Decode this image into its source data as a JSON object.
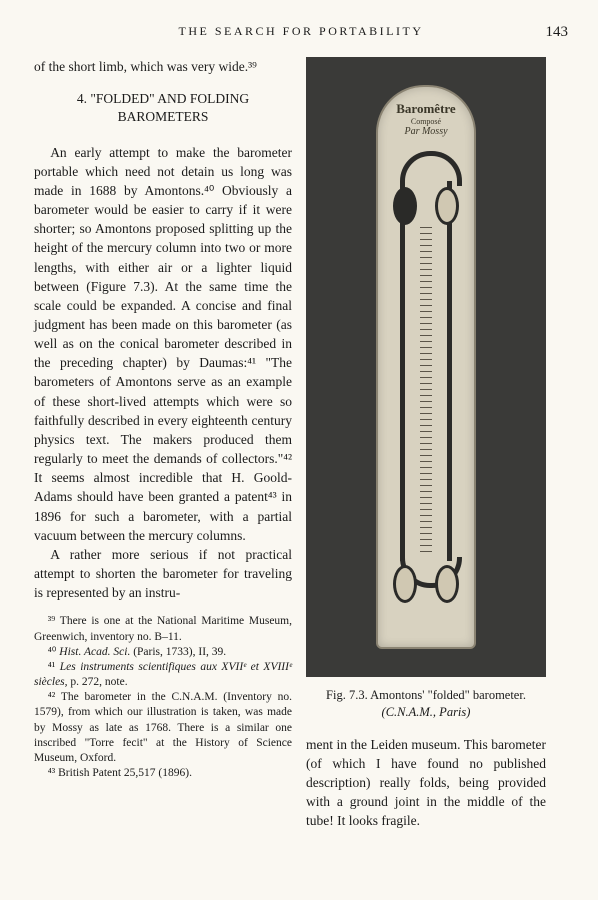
{
  "header": {
    "running_head": "THE SEARCH FOR PORTABILITY",
    "page_number": "143"
  },
  "left": {
    "fragment": "of the short limb, which was very wide.³⁹",
    "section_number": "4.",
    "section_title": "\"FOLDED\" AND FOLDING BAROMETERS",
    "para1": "An early attempt to make the barometer portable which need not detain us long was made in 1688 by Amontons.⁴⁰ Obviously a barometer would be easier to carry if it were shorter; so Amontons proposed splitting up the height of the mercury column into two or more lengths, with either air or a lighter liquid between (Figure 7.3). At the same time the scale could be expanded. A concise and final judgment has been made on this barometer (as well as on the conical barometer described in the preceding chapter) by Daumas:⁴¹ \"The barometers of Amontons serve as an example of these short-lived attempts which were so faithfully described in every eighteenth century physics text. The makers produced them regularly to meet the demands of collectors.\"⁴² It seems almost incredible that H. Goold-Adams should have been granted a patent⁴³ in 1896 for such a barometer, with a partial vacuum between the mercury columns.",
    "para2": "A rather more serious if not practical attempt to shorten the barometer for traveling is represented by an instru-"
  },
  "footnotes": {
    "n39": "³⁹ There is one at the National Maritime Museum, Greenwich, inventory no. B–11.",
    "n40_a": "⁴⁰ ",
    "n40_b": "Hist. Acad. Sci.",
    "n40_c": " (Paris, 1733), II, 39.",
    "n41_a": "⁴¹ ",
    "n41_b": "Les instruments scientifiques aux XVIIᵉ et XVIIIᵉ siècles,",
    "n41_c": " p. 272, note.",
    "n42": "⁴² The barometer in the C.N.A.M. (Inventory no. 1579), from which our illustration is taken, was made by Mossy as late as 1768. There is a similar one inscribed \"Torre fecit\" at the History of Science Museum, Oxford.",
    "n43": "⁴³ British Patent 25,517 (1896)."
  },
  "figure": {
    "plate_top1": "Baromêtre",
    "plate_top2": "Composé",
    "plate_top3": "Par Mossy",
    "caption_a": "Fig. 7.3. Amontons' \"folded\" barometer. ",
    "caption_b": "(C.N.A.M., Paris)",
    "colors": {
      "frame_bg": "#3a3a38",
      "plate_bg": "#d8d2c0",
      "plate_border": "#8a8372",
      "tube": "#2a2a28"
    }
  },
  "right_body": {
    "para": "ment in the Leiden museum. This barometer (of which I have found no published description) really folds, being provided with a ground joint in the middle of the tube! It looks fragile."
  }
}
